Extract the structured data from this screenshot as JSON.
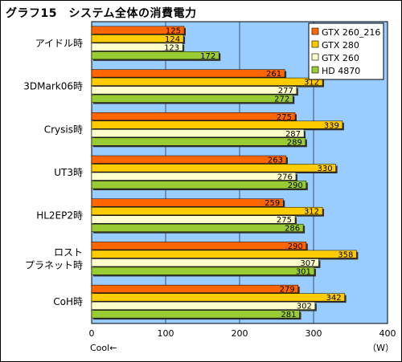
{
  "chart_data": {
    "type": "bar",
    "orientation": "horizontal",
    "title": "グラフ15　システム全体の消費電力",
    "categories": [
      "アイドル時",
      "3DMark06時",
      "Crysis時",
      "UT3時",
      "HL2EP2時",
      "ロスト\nプラネット時",
      "CoH時"
    ],
    "series": [
      {
        "name": "GTX 260_216",
        "color": "#ff6600",
        "values": [
          125,
          261,
          275,
          263,
          259,
          290,
          279
        ]
      },
      {
        "name": "GTX 280",
        "color": "#ffcc00",
        "values": [
          124,
          312,
          339,
          330,
          312,
          358,
          342
        ]
      },
      {
        "name": "GTX 260",
        "color": "#ffffcc",
        "values": [
          123,
          277,
          287,
          276,
          275,
          307,
          302
        ]
      },
      {
        "name": "HD 4870",
        "color": "#99cc33",
        "values": [
          172,
          272,
          289,
          290,
          286,
          301,
          281
        ]
      }
    ],
    "xlim": [
      0,
      400
    ],
    "xticks": [
      0,
      100,
      200,
      300,
      400
    ],
    "xunit": "（W）",
    "xnote": "Cool←",
    "grid": true,
    "legend_position": "top-right",
    "plot_background": "#99ccff"
  }
}
